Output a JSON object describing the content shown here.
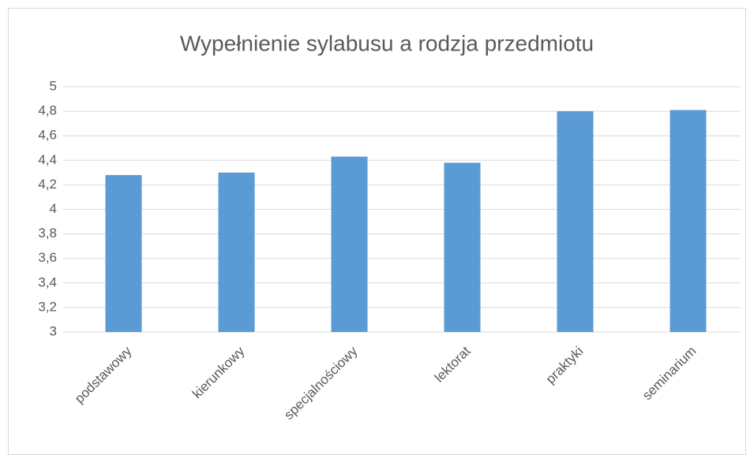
{
  "chart_data": {
    "type": "bar",
    "title": "Wypełnienie sylabusu a rodzja przedmiotu",
    "categories": [
      "podstawowy",
      "kierunkowy",
      "specjalnościowy",
      "lektorat",
      "praktyki",
      "seminarium"
    ],
    "values": [
      4.28,
      4.3,
      4.43,
      4.38,
      4.8,
      4.81
    ],
    "color": "#5b9bd5",
    "ylim": [
      3,
      5
    ],
    "yticks": [
      3,
      {
        "value": 3.2,
        "label": "3,2"
      },
      {
        "value": 3.4,
        "label": "3,4"
      },
      {
        "value": 3.6,
        "label": "3,6"
      },
      {
        "value": 3.8,
        "label": "3,8"
      },
      4,
      {
        "value": 4.2,
        "label": "4,2"
      },
      {
        "value": 4.4,
        "label": "4,4"
      },
      {
        "value": 4.6,
        "label": "4,6"
      },
      {
        "value": 4.8,
        "label": "4,8"
      },
      5
    ],
    "grid": true
  }
}
